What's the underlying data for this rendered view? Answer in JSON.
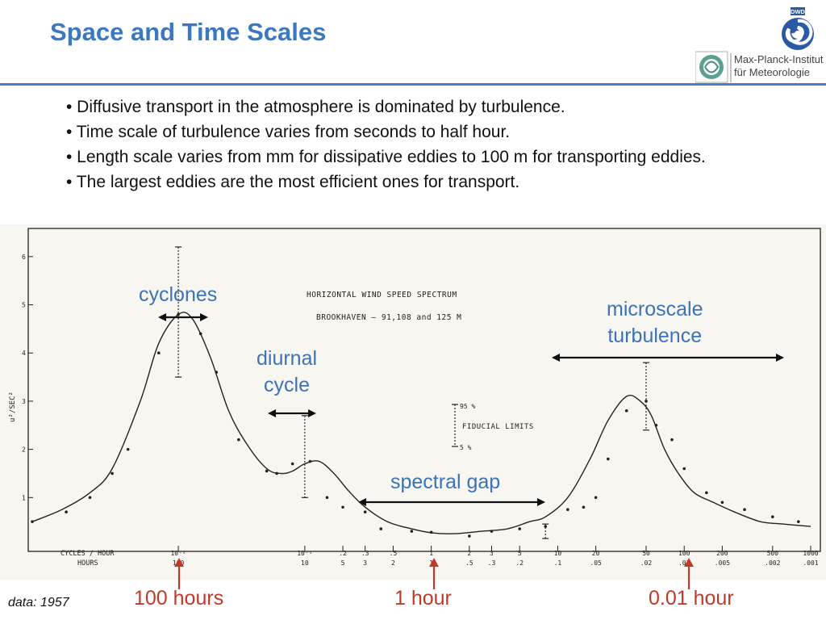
{
  "slide": {
    "title": "Space and Time Scales",
    "bullets": [
      "• Diffusive transport in the atmosphere is dominated by turbulence.",
      "• Time scale of turbulence varies from seconds to half hour.",
      "• Length scale varies from mm for dissipative eddies to 100 m for transporting eddies.",
      "• The largest eddies are the most efficient ones for transport."
    ],
    "logo_text": [
      "Max-Planck-Institut",
      "für Meteorologie"
    ],
    "logo_dwd": "DWD",
    "footnote": "data: 1957"
  },
  "annotations": {
    "cyclones": "cyclones",
    "diurnal": [
      "diurnal",
      "cycle"
    ],
    "microscale": [
      "microscale",
      "turbulence"
    ],
    "spectral_gap": "spectral gap",
    "time_markers": [
      "100 hours",
      "1 hour",
      "0.01 hour"
    ]
  },
  "colors": {
    "title": "#3a78c2",
    "annotation": "#3b73b8",
    "marker": "#c0392b"
  },
  "chart_data": {
    "type": "line",
    "title": "HORIZONTAL WIND SPEED SPECTRUM",
    "subtitle": "BROOKHAVEN — 91,108 and 125 M",
    "xlabel": [
      "CYCLES / HOUR",
      "HOURS"
    ],
    "ylabel": "u²/SEC²",
    "x_scale": "log",
    "xlim": [
      0.0007,
      1000
    ],
    "ylim": [
      0,
      6.5
    ],
    "yticks": [
      1,
      2,
      3,
      4,
      5,
      6
    ],
    "ytick_labels": [
      "1",
      "2",
      "3",
      "4",
      "5",
      "6"
    ],
    "xticks_cph": [
      0.01,
      0.1,
      0.2,
      0.3,
      0.5,
      1,
      2,
      3,
      5,
      10,
      20,
      50,
      100,
      200,
      500,
      1000
    ],
    "xtick_labels_cph": [
      "10⁻²",
      "10⁻¹",
      ".2",
      ".3",
      ".5",
      "1",
      "2",
      "3",
      "5",
      "10",
      "20",
      "50",
      "100",
      "200",
      "500",
      "1000"
    ],
    "xtick_labels_hours": [
      "100",
      "10",
      "5",
      "3",
      "2",
      "1",
      ".5",
      ".3",
      ".2",
      ".1",
      ".05",
      ".02",
      ".01",
      ".005",
      ".002",
      ".001"
    ],
    "fiducial_legend": {
      "upper": "95 %",
      "label": "FIDUCIAL LIMITS",
      "lower": "5 %"
    },
    "series": [
      {
        "x": [
          0.0007,
          0.0012,
          0.002,
          0.003,
          0.005,
          0.007,
          0.01,
          0.013,
          0.018,
          0.025,
          0.035,
          0.05,
          0.065,
          0.08,
          0.1,
          0.13,
          0.17,
          0.22,
          0.3,
          0.45,
          0.7,
          1,
          1.5,
          2.5,
          4,
          6,
          8,
          12,
          18,
          25,
          35,
          45,
          55,
          70,
          90,
          120,
          170,
          250,
          400,
          600,
          1000
        ],
        "y": [
          0.5,
          0.75,
          1.1,
          1.6,
          3.0,
          4.2,
          4.8,
          4.7,
          3.9,
          2.8,
          2.1,
          1.6,
          1.5,
          1.55,
          1.7,
          1.75,
          1.5,
          1.15,
          0.8,
          0.5,
          0.35,
          0.27,
          0.25,
          0.3,
          0.35,
          0.5,
          0.6,
          1.0,
          1.8,
          2.6,
          3.1,
          3.0,
          2.7,
          2.0,
          1.5,
          1.1,
          0.9,
          0.7,
          0.5,
          0.45,
          0.4
        ]
      }
    ],
    "error_bars": [
      {
        "x": 0.01,
        "low": 3.5,
        "high": 6.2
      },
      {
        "x": 0.1,
        "low": 1.0,
        "high": 2.7
      },
      {
        "x": 8,
        "low": 0.15,
        "high": 0.45
      },
      {
        "x": 50,
        "low": 2.4,
        "high": 3.8
      }
    ],
    "points": [
      {
        "x": 0.0007,
        "y": 0.5
      },
      {
        "x": 0.0013,
        "y": 0.7
      },
      {
        "x": 0.002,
        "y": 1.0
      },
      {
        "x": 0.003,
        "y": 1.5
      },
      {
        "x": 0.004,
        "y": 2.0
      },
      {
        "x": 0.007,
        "y": 4.0
      },
      {
        "x": 0.01,
        "y": 4.8
      },
      {
        "x": 0.015,
        "y": 4.4
      },
      {
        "x": 0.02,
        "y": 3.6
      },
      {
        "x": 0.03,
        "y": 2.2
      },
      {
        "x": 0.05,
        "y": 1.55
      },
      {
        "x": 0.06,
        "y": 1.5
      },
      {
        "x": 0.08,
        "y": 1.7
      },
      {
        "x": 0.11,
        "y": 1.75
      },
      {
        "x": 0.15,
        "y": 1.0
      },
      {
        "x": 0.2,
        "y": 0.8
      },
      {
        "x": 0.3,
        "y": 0.7
      },
      {
        "x": 0.4,
        "y": 0.35
      },
      {
        "x": 0.7,
        "y": 0.3
      },
      {
        "x": 1,
        "y": 0.28
      },
      {
        "x": 2,
        "y": 0.2
      },
      {
        "x": 3,
        "y": 0.3
      },
      {
        "x": 5,
        "y": 0.35
      },
      {
        "x": 8,
        "y": 0.4
      },
      {
        "x": 12,
        "y": 0.75
      },
      {
        "x": 16,
        "y": 0.8
      },
      {
        "x": 20,
        "y": 1.0
      },
      {
        "x": 25,
        "y": 1.8
      },
      {
        "x": 35,
        "y": 2.8
      },
      {
        "x": 50,
        "y": 3.0
      },
      {
        "x": 60,
        "y": 2.5
      },
      {
        "x": 80,
        "y": 2.2
      },
      {
        "x": 100,
        "y": 1.6
      },
      {
        "x": 150,
        "y": 1.1
      },
      {
        "x": 200,
        "y": 0.9
      },
      {
        "x": 300,
        "y": 0.75
      },
      {
        "x": 500,
        "y": 0.6
      },
      {
        "x": 800,
        "y": 0.5
      }
    ]
  }
}
